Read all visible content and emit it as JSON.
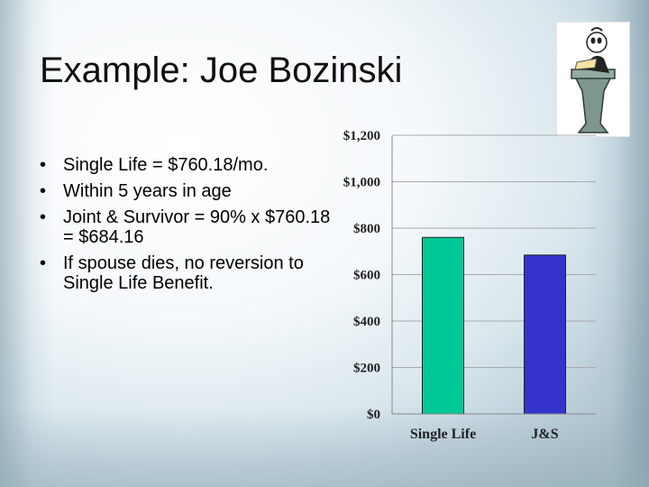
{
  "slide": {
    "title": "Example: Joe Bozinski",
    "bullets": [
      "Single Life = $760.18/mo.",
      "Within 5 years in age",
      "Joint & Survivor = 90% x $760.18 = $684.16",
      "If spouse dies, no reversion to Single Life Benefit."
    ]
  },
  "chart_data": {
    "type": "bar",
    "categories": [
      "Single Life",
      "J&S"
    ],
    "values": [
      760.18,
      684.16
    ],
    "ylim": [
      0,
      1200
    ],
    "ytick_values": [
      0,
      200,
      400,
      600,
      800,
      1000,
      1200
    ],
    "ytick_labels": [
      "$0",
      "$200",
      "$400",
      "$600",
      "$800",
      "$1,000",
      "$1,200"
    ],
    "colors": [
      "#00c896",
      "#3333cc"
    ],
    "grid": true,
    "title": "",
    "xlabel": "",
    "ylabel": ""
  }
}
